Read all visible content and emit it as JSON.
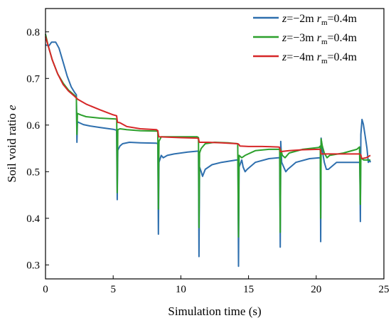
{
  "chart_data": {
    "type": "line",
    "xlabel": "Simulation time (s)",
    "ylabel_main": "Soil void ratio ",
    "ylabel_var": "e",
    "xlim": [
      0,
      25
    ],
    "ylim": [
      0.27,
      0.85
    ],
    "xticks": [
      0,
      5,
      10,
      15,
      20,
      25
    ],
    "yticks": [
      0.3,
      0.4,
      0.5,
      0.6,
      0.7,
      0.8
    ],
    "xtick_labels": [
      "0",
      "5",
      "10",
      "15",
      "20",
      "25"
    ],
    "ytick_labels": [
      "0.3",
      "0.4",
      "0.5",
      "0.6",
      "0.7",
      "0.8"
    ],
    "grid": false,
    "legend_placement": "top-right",
    "series": [
      {
        "name": "z=−2m rm=0.4m",
        "legend": {
          "var1": "z",
          "val1": "=−2m ",
          "var2": "r",
          "sub": "m",
          "val2": "=0.4m"
        },
        "color": "#2e6fae",
        "points": [
          [
            0,
            0.772
          ],
          [
            0.25,
            0.77
          ],
          [
            0.45,
            0.778
          ],
          [
            0.75,
            0.778
          ],
          [
            1.0,
            0.765
          ],
          [
            1.3,
            0.735
          ],
          [
            1.6,
            0.705
          ],
          [
            1.9,
            0.682
          ],
          [
            2.15,
            0.67
          ],
          [
            2.28,
            0.665
          ],
          [
            2.32,
            0.563
          ],
          [
            2.36,
            0.607
          ],
          [
            2.5,
            0.605
          ],
          [
            2.8,
            0.601
          ],
          [
            3.3,
            0.598
          ],
          [
            4.0,
            0.595
          ],
          [
            5.0,
            0.591
          ],
          [
            5.25,
            0.589
          ],
          [
            5.3,
            0.44
          ],
          [
            5.34,
            0.546
          ],
          [
            5.5,
            0.555
          ],
          [
            5.7,
            0.56
          ],
          [
            6.2,
            0.563
          ],
          [
            7.0,
            0.562
          ],
          [
            8.2,
            0.561
          ],
          [
            8.3,
            0.56
          ],
          [
            8.34,
            0.366
          ],
          [
            8.38,
            0.52
          ],
          [
            8.55,
            0.535
          ],
          [
            8.7,
            0.53
          ],
          [
            9.0,
            0.535
          ],
          [
            9.5,
            0.538
          ],
          [
            10.5,
            0.542
          ],
          [
            11.2,
            0.544
          ],
          [
            11.3,
            0.544
          ],
          [
            11.34,
            0.318
          ],
          [
            11.38,
            0.51
          ],
          [
            11.5,
            0.5
          ],
          [
            11.6,
            0.49
          ],
          [
            11.8,
            0.505
          ],
          [
            12.3,
            0.515
          ],
          [
            13.0,
            0.52
          ],
          [
            14.1,
            0.525
          ],
          [
            14.22,
            0.525
          ],
          [
            14.26,
            0.297
          ],
          [
            14.3,
            0.51
          ],
          [
            14.5,
            0.525
          ],
          [
            14.6,
            0.51
          ],
          [
            14.75,
            0.5
          ],
          [
            14.9,
            0.505
          ],
          [
            15.5,
            0.52
          ],
          [
            16.5,
            0.528
          ],
          [
            17.2,
            0.53
          ],
          [
            17.3,
            0.53
          ],
          [
            17.34,
            0.338
          ],
          [
            17.38,
            0.565
          ],
          [
            17.45,
            0.52
          ],
          [
            17.6,
            0.51
          ],
          [
            17.75,
            0.5
          ],
          [
            17.9,
            0.505
          ],
          [
            18.5,
            0.52
          ],
          [
            19.5,
            0.528
          ],
          [
            20.25,
            0.53
          ],
          [
            20.3,
            0.53
          ],
          [
            20.33,
            0.35
          ],
          [
            20.36,
            0.572
          ],
          [
            20.45,
            0.545
          ],
          [
            20.6,
            0.52
          ],
          [
            20.75,
            0.505
          ],
          [
            20.9,
            0.505
          ],
          [
            21.5,
            0.52
          ],
          [
            22.5,
            0.52
          ],
          [
            23.15,
            0.52
          ],
          [
            23.22,
            0.52
          ],
          [
            23.26,
            0.393
          ],
          [
            23.3,
            0.58
          ],
          [
            23.38,
            0.612
          ],
          [
            23.48,
            0.602
          ],
          [
            23.6,
            0.58
          ],
          [
            23.75,
            0.55
          ],
          [
            23.85,
            0.52
          ],
          [
            23.95,
            0.525
          ],
          [
            24.0,
            0.52
          ]
        ]
      },
      {
        "name": "z=−3m rm=0.4m",
        "legend": {
          "var1": "z",
          "val1": "=−3m ",
          "var2": "r",
          "sub": "m",
          "val2": "=0.4m"
        },
        "color": "#2ca02c",
        "points": [
          [
            0,
            0.795
          ],
          [
            0.2,
            0.77
          ],
          [
            0.5,
            0.74
          ],
          [
            0.9,
            0.71
          ],
          [
            1.3,
            0.69
          ],
          [
            1.7,
            0.675
          ],
          [
            2.1,
            0.665
          ],
          [
            2.28,
            0.66
          ],
          [
            2.32,
            0.58
          ],
          [
            2.36,
            0.625
          ],
          [
            2.6,
            0.622
          ],
          [
            3.0,
            0.618
          ],
          [
            4.0,
            0.615
          ],
          [
            5.2,
            0.613
          ],
          [
            5.26,
            0.612
          ],
          [
            5.3,
            0.455
          ],
          [
            5.34,
            0.59
          ],
          [
            5.5,
            0.592
          ],
          [
            6.0,
            0.59
          ],
          [
            7.0,
            0.588
          ],
          [
            8.25,
            0.587
          ],
          [
            8.3,
            0.585
          ],
          [
            8.34,
            0.42
          ],
          [
            8.38,
            0.565
          ],
          [
            8.55,
            0.575
          ],
          [
            9.0,
            0.575
          ],
          [
            10.0,
            0.575
          ],
          [
            11.2,
            0.575
          ],
          [
            11.3,
            0.573
          ],
          [
            11.34,
            0.38
          ],
          [
            11.38,
            0.54
          ],
          [
            11.5,
            0.55
          ],
          [
            11.8,
            0.56
          ],
          [
            12.5,
            0.563
          ],
          [
            13.5,
            0.562
          ],
          [
            14.2,
            0.56
          ],
          [
            14.26,
            0.36
          ],
          [
            14.3,
            0.535
          ],
          [
            14.5,
            0.53
          ],
          [
            14.75,
            0.535
          ],
          [
            15.5,
            0.545
          ],
          [
            16.5,
            0.548
          ],
          [
            17.25,
            0.548
          ],
          [
            17.3,
            0.55
          ],
          [
            17.34,
            0.37
          ],
          [
            17.38,
            0.548
          ],
          [
            17.5,
            0.535
          ],
          [
            17.7,
            0.53
          ],
          [
            18.0,
            0.54
          ],
          [
            19.0,
            0.548
          ],
          [
            20.2,
            0.552
          ],
          [
            20.3,
            0.555
          ],
          [
            20.33,
            0.4
          ],
          [
            20.36,
            0.57
          ],
          [
            20.45,
            0.555
          ],
          [
            20.6,
            0.54
          ],
          [
            20.8,
            0.53
          ],
          [
            21.0,
            0.535
          ],
          [
            22.0,
            0.54
          ],
          [
            23.0,
            0.548
          ],
          [
            23.2,
            0.553
          ],
          [
            23.26,
            0.43
          ],
          [
            23.3,
            0.53
          ],
          [
            23.5,
            0.525
          ],
          [
            24.0,
            0.525
          ]
        ]
      },
      {
        "name": "z=−4m rm=0.4m",
        "legend": {
          "var1": "z",
          "val1": "=−4m ",
          "var2": "r",
          "sub": "m",
          "val2": "=0.4m"
        },
        "color": "#d62728",
        "points": [
          [
            0,
            0.79
          ],
          [
            0.2,
            0.77
          ],
          [
            0.5,
            0.74
          ],
          [
            0.9,
            0.71
          ],
          [
            1.3,
            0.687
          ],
          [
            1.7,
            0.673
          ],
          [
            2.1,
            0.663
          ],
          [
            2.4,
            0.655
          ],
          [
            3.0,
            0.645
          ],
          [
            4.0,
            0.633
          ],
          [
            5.0,
            0.622
          ],
          [
            5.25,
            0.62
          ],
          [
            5.32,
            0.606
          ],
          [
            5.5,
            0.605
          ],
          [
            6.0,
            0.597
          ],
          [
            7.0,
            0.592
          ],
          [
            8.2,
            0.59
          ],
          [
            8.3,
            0.588
          ],
          [
            8.36,
            0.575
          ],
          [
            9.0,
            0.574
          ],
          [
            10.0,
            0.573
          ],
          [
            11.2,
            0.572
          ],
          [
            11.3,
            0.571
          ],
          [
            11.36,
            0.563
          ],
          [
            12.0,
            0.563
          ],
          [
            13.0,
            0.562
          ],
          [
            14.2,
            0.56
          ],
          [
            14.3,
            0.558
          ],
          [
            14.36,
            0.555
          ],
          [
            15.0,
            0.554
          ],
          [
            16.0,
            0.554
          ],
          [
            17.2,
            0.553
          ],
          [
            17.3,
            0.552
          ],
          [
            17.36,
            0.543
          ],
          [
            18.0,
            0.545
          ],
          [
            19.0,
            0.547
          ],
          [
            20.2,
            0.548
          ],
          [
            20.3,
            0.548
          ],
          [
            20.36,
            0.538
          ],
          [
            21.0,
            0.538
          ],
          [
            22.0,
            0.538
          ],
          [
            23.2,
            0.538
          ],
          [
            23.3,
            0.536
          ],
          [
            23.36,
            0.528
          ],
          [
            23.7,
            0.53
          ],
          [
            24.0,
            0.535
          ]
        ]
      }
    ]
  }
}
